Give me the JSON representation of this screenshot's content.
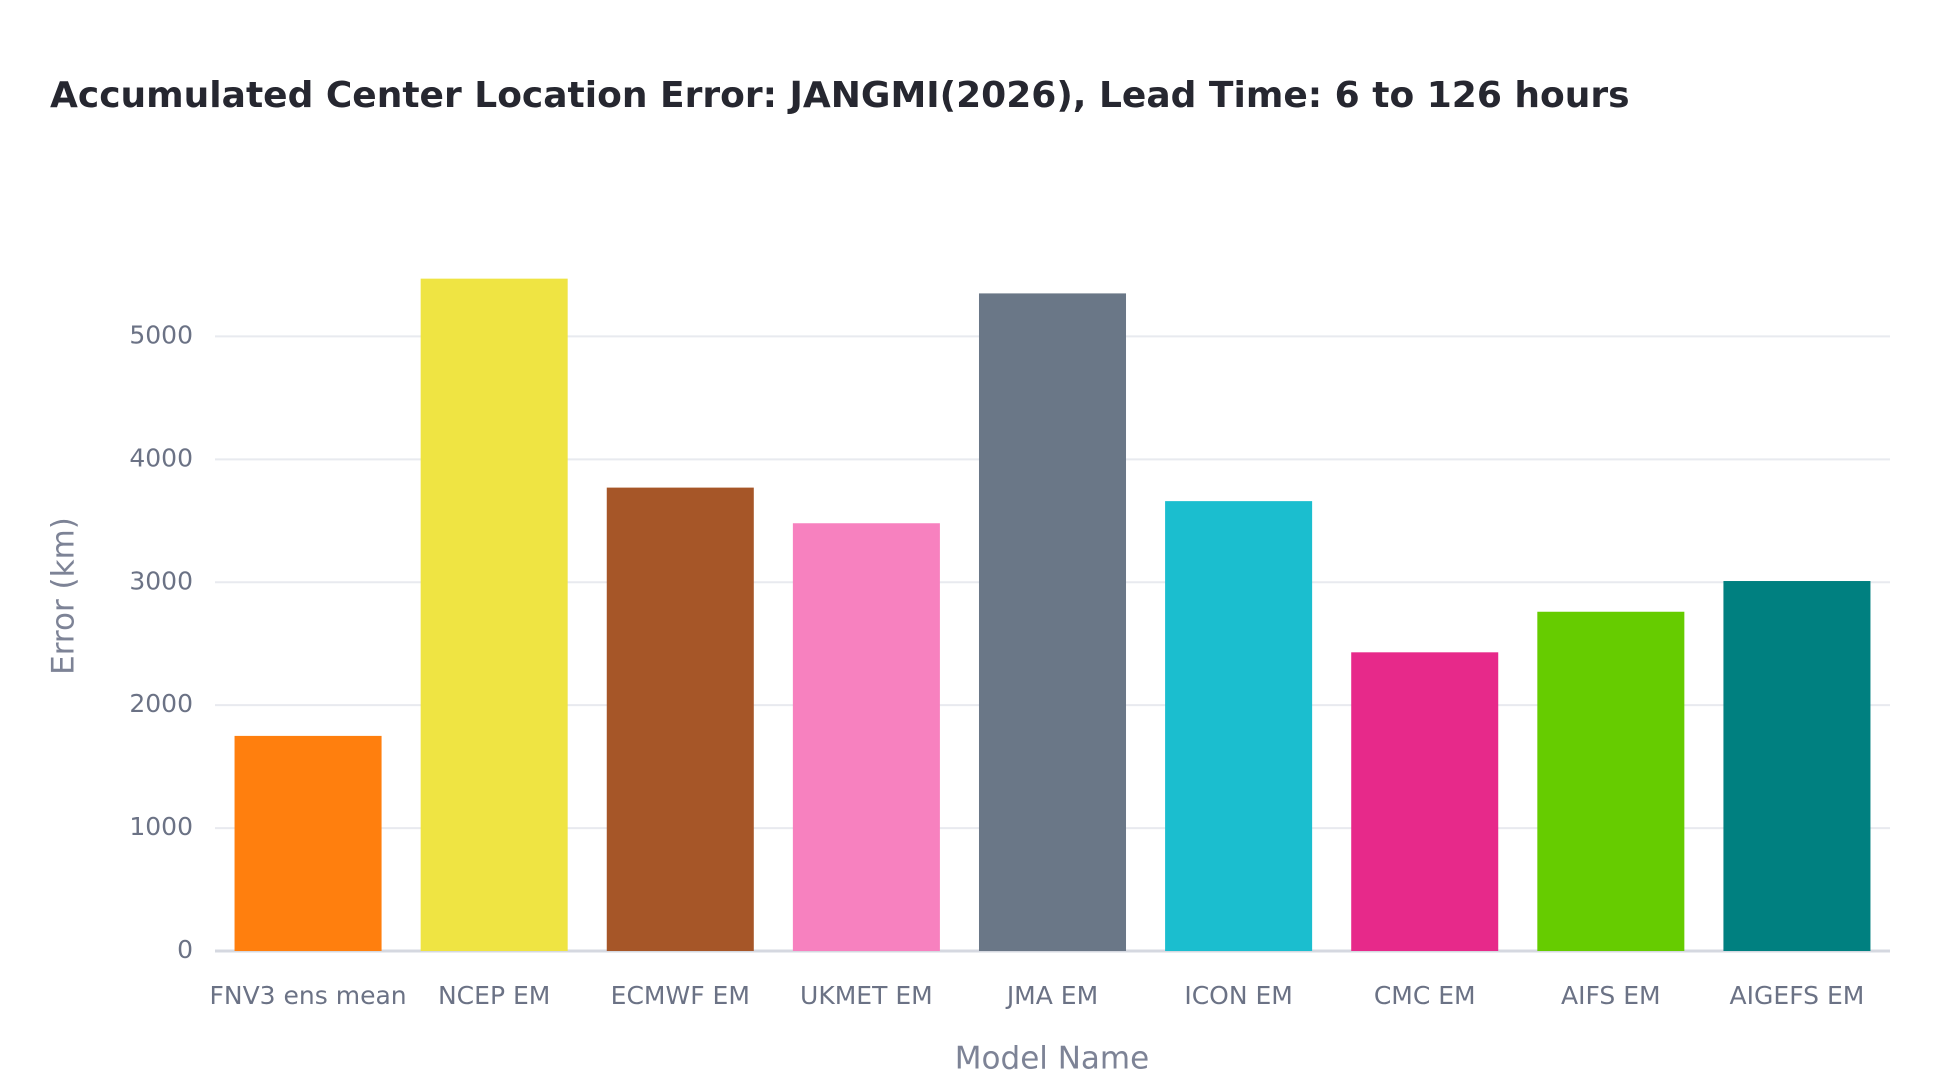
{
  "chart_data": {
    "type": "bar",
    "title": "Accumulated Center Location Error: JANGMI(2026), Lead Time: 6 to 126 hours",
    "x_label": "Model Name",
    "y_label": "Error (km)",
    "categories": [
      "FNV3 ens mean",
      "NCEP EM",
      "ECMWF EM",
      "UKMET EM",
      "JMA EM",
      "ICON EM",
      "CMC EM",
      "AIFS EM",
      "AIGEFS EM"
    ],
    "values": [
      1750,
      5470,
      3770,
      3480,
      5350,
      3660,
      2430,
      2760,
      3010
    ],
    "colors": [
      "#ff7f0e",
      "#efe443",
      "#a65628",
      "#f781bf",
      "#6a7787",
      "#1bbecf",
      "#e7298a",
      "#66cc00",
      "#008080"
    ],
    "ylim": [
      0,
      5760
    ],
    "yticks": [
      0,
      1000,
      2000,
      3000,
      4000,
      5000
    ],
    "grid": true
  }
}
